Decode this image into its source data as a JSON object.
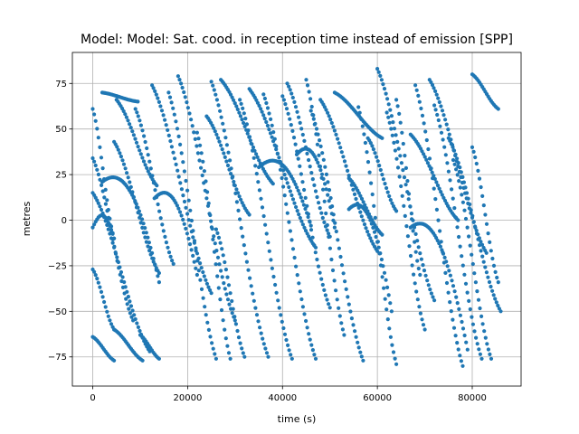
{
  "chart_data": {
    "type": "scatter",
    "title": "Model: Model: Sat. cood. in reception time instead of emission [SPP]",
    "xlabel": "time (s)",
    "ylabel": "metres",
    "xlim": [
      -4300,
      90300
    ],
    "ylim": [
      -91,
      92
    ],
    "xticks": [
      0,
      20000,
      40000,
      60000,
      80000
    ],
    "yticks": [
      -75,
      -50,
      -25,
      0,
      25,
      50,
      75
    ],
    "grid": true,
    "marker_color": "#1f77b4",
    "arcs": [
      {
        "t0": 0,
        "t1": 4500,
        "v0": 61,
        "v1": -10
      },
      {
        "t0": 0,
        "t1": 8500,
        "v0": 34,
        "v1": -55
      },
      {
        "t0": 0,
        "t1": 12000,
        "v0": 15,
        "v1": -72
      },
      {
        "t0": 0,
        "t1": 4500,
        "v0": -4,
        "v1": -10,
        "shape": "arc"
      },
      {
        "t0": 0,
        "t1": 4500,
        "v0": -27,
        "v1": -60
      },
      {
        "t0": 0,
        "t1": 4500,
        "v0": -64,
        "v1": -77
      },
      {
        "t0": 2000,
        "t1": 9500,
        "v0": 70,
        "v1": 65
      },
      {
        "t0": 2000,
        "t1": 14000,
        "v0": 21,
        "v1": -34,
        "shape": "arc"
      },
      {
        "t0": 4500,
        "t1": 14000,
        "v0": 43,
        "v1": -29
      },
      {
        "t0": 4500,
        "t1": 10500,
        "v0": -60,
        "v1": -77
      },
      {
        "t0": 5000,
        "t1": 13500,
        "v0": 66,
        "v1": 19
      },
      {
        "t0": 9000,
        "t1": 17000,
        "v0": 61,
        "v1": -24
      },
      {
        "t0": 10000,
        "t1": 14000,
        "v0": -63,
        "v1": -76
      },
      {
        "t0": 13000,
        "t1": 22000,
        "v0": 12,
        "v1": -30,
        "shape": "arc"
      },
      {
        "t0": 12500,
        "t1": 25000,
        "v0": 74,
        "v1": -40
      },
      {
        "t0": 16000,
        "t1": 26000,
        "v0": 70,
        "v1": -76
      },
      {
        "t0": 18000,
        "t1": 30000,
        "v0": 79,
        "v1": -55
      },
      {
        "t0": 22000,
        "t1": 29000,
        "v0": 48,
        "v1": -76
      },
      {
        "t0": 24000,
        "t1": 33000,
        "v0": 57,
        "v1": 3
      },
      {
        "t0": 25000,
        "t1": 37000,
        "v0": 76,
        "v1": -75
      },
      {
        "t0": 26000,
        "t1": 32000,
        "v0": -5,
        "v1": -75
      },
      {
        "t0": 27000,
        "t1": 38000,
        "v0": 77,
        "v1": 20
      },
      {
        "t0": 31000,
        "t1": 42000,
        "v0": 66,
        "v1": -76
      },
      {
        "t0": 33000,
        "t1": 47000,
        "v0": 72,
        "v1": -15
      },
      {
        "t0": 35000,
        "t1": 46000,
        "v0": 29,
        "v1": -3,
        "shape": "arc"
      },
      {
        "t0": 36000,
        "t1": 47000,
        "v0": 69,
        "v1": -76
      },
      {
        "t0": 40000,
        "t1": 50000,
        "v0": 68,
        "v1": -48
      },
      {
        "t0": 41000,
        "t1": 50000,
        "v0": 75,
        "v1": -9
      },
      {
        "t0": 43000,
        "t1": 51000,
        "v0": 36,
        "v1": -4,
        "shape": "arc"
      },
      {
        "t0": 45000,
        "t1": 53000,
        "v0": 77,
        "v1": -63
      },
      {
        "t0": 46000,
        "t1": 57000,
        "v0": 60,
        "v1": -77
      },
      {
        "t0": 51000,
        "t1": 61000,
        "v0": 70,
        "v1": 45
      },
      {
        "t0": 48000,
        "t1": 60000,
        "v0": 66,
        "v1": -17
      },
      {
        "t0": 54000,
        "t1": 61000,
        "v0": 23,
        "v1": -8
      },
      {
        "t0": 54000,
        "t1": 63000,
        "v0": 6,
        "v1": -50,
        "shape": "arc"
      },
      {
        "t0": 56000,
        "t1": 64000,
        "v0": 62,
        "v1": -79
      },
      {
        "t0": 58000,
        "t1": 64000,
        "v0": 45,
        "v1": 5
      },
      {
        "t0": 60000,
        "t1": 72000,
        "v0": 83,
        "v1": -44
      },
      {
        "t0": 62000,
        "t1": 70000,
        "v0": 59,
        "v1": -60
      },
      {
        "t0": 64000,
        "t1": 69000,
        "v0": 66,
        "v1": -30
      },
      {
        "t0": 67000,
        "t1": 77000,
        "v0": 47,
        "v1": 0
      },
      {
        "t0": 67000,
        "t1": 79000,
        "v0": -4,
        "v1": -71,
        "shape": "arc"
      },
      {
        "t0": 68000,
        "t1": 78000,
        "v0": 74,
        "v1": -80
      },
      {
        "t0": 71000,
        "t1": 83000,
        "v0": 77,
        "v1": -18
      },
      {
        "t0": 72000,
        "t1": 82000,
        "v0": 63,
        "v1": -76
      },
      {
        "t0": 75000,
        "t1": 86000,
        "v0": 45,
        "v1": -50
      },
      {
        "t0": 76000,
        "t1": 84000,
        "v0": 33,
        "v1": -76
      },
      {
        "t0": 80000,
        "t1": 85500,
        "v0": 80,
        "v1": 61
      },
      {
        "t0": 80000,
        "t1": 85500,
        "v0": 40,
        "v1": -34
      }
    ]
  }
}
